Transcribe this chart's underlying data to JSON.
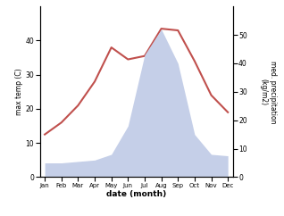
{
  "months": [
    "Jan",
    "Feb",
    "Mar",
    "Apr",
    "May",
    "Jun",
    "Jul",
    "Aug",
    "Sep",
    "Oct",
    "Nov",
    "Dec"
  ],
  "temperature": [
    12.5,
    16.0,
    21.0,
    28.0,
    38.0,
    34.5,
    35.5,
    43.5,
    43.0,
    34.0,
    24.0,
    19.0
  ],
  "precipitation": [
    5.0,
    5.0,
    5.5,
    6.0,
    8.0,
    18.0,
    43.0,
    52.0,
    40.0,
    15.0,
    8.0,
    7.5
  ],
  "temp_color": "#c0504d",
  "precip_fill_color": "#c5cfe8",
  "ylabel_left": "max temp (C)",
  "ylabel_right": "med. precipitation\n(kg/m2)",
  "xlabel": "date (month)",
  "ylim_left": [
    0,
    50
  ],
  "ylim_right": [
    0,
    60
  ],
  "yticks_left": [
    0,
    10,
    20,
    30,
    40
  ],
  "yticks_right": [
    0,
    10,
    20,
    30,
    40,
    50
  ]
}
